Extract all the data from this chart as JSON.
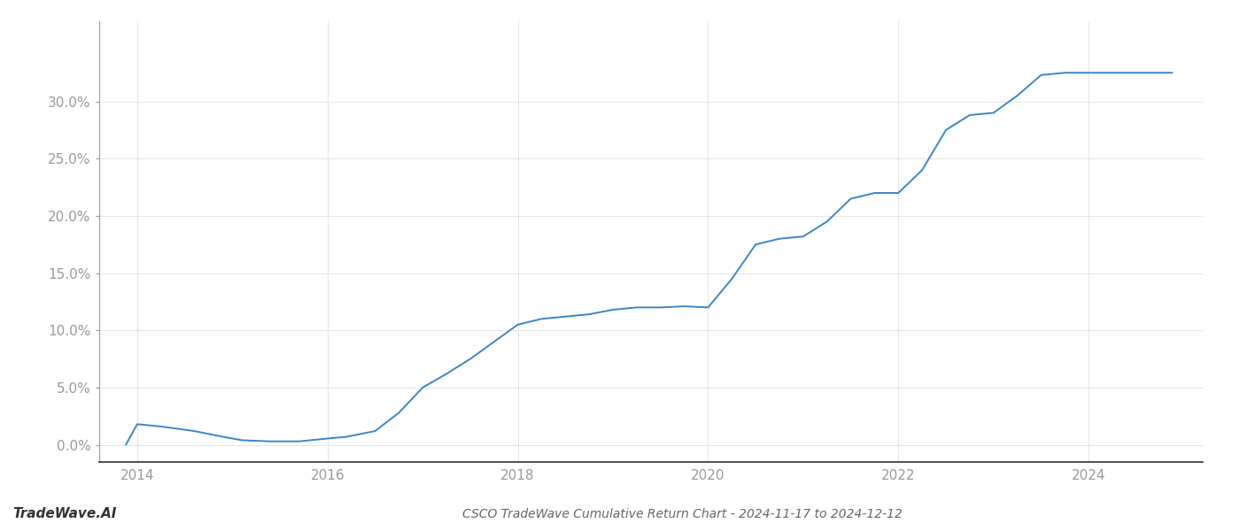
{
  "title": "CSCO TradeWave Cumulative Return Chart - 2024-11-17 to 2024-12-12",
  "watermark": "TradeWave.AI",
  "line_color": "#3a86c8",
  "background_color": "#ffffff",
  "grid_color": "#cccccc",
  "x_values": [
    2013.88,
    2014.0,
    2014.25,
    2014.6,
    2014.9,
    2015.1,
    2015.4,
    2015.7,
    2016.0,
    2016.2,
    2016.5,
    2016.75,
    2017.0,
    2017.25,
    2017.5,
    2017.75,
    2018.0,
    2018.25,
    2018.5,
    2018.75,
    2019.0,
    2019.25,
    2019.5,
    2019.75,
    2020.0,
    2020.25,
    2020.5,
    2020.75,
    2021.0,
    2021.25,
    2021.5,
    2021.75,
    2022.0,
    2022.25,
    2022.5,
    2022.75,
    2023.0,
    2023.25,
    2023.5,
    2023.75,
    2024.0,
    2024.5,
    2024.88
  ],
  "y_values": [
    0.0,
    1.8,
    1.6,
    1.2,
    0.7,
    0.4,
    0.3,
    0.3,
    0.55,
    0.7,
    1.2,
    2.8,
    5.0,
    6.2,
    7.5,
    9.0,
    10.5,
    11.0,
    11.2,
    11.4,
    11.8,
    12.0,
    12.0,
    12.1,
    12.0,
    14.5,
    17.5,
    18.0,
    18.2,
    19.5,
    21.5,
    22.0,
    22.0,
    24.0,
    27.5,
    28.8,
    29.0,
    30.5,
    32.3,
    32.5,
    32.5,
    32.5,
    32.5
  ],
  "xlim": [
    2013.6,
    2025.2
  ],
  "ylim": [
    -1.5,
    37
  ],
  "xticks": [
    2014,
    2016,
    2018,
    2020,
    2022,
    2024
  ],
  "yticks": [
    0,
    5,
    10,
    15,
    20,
    25,
    30
  ],
  "ytick_labels": [
    "0.0%",
    "5.0%",
    "10.0%",
    "15.0%",
    "20.0%",
    "25.0%",
    "30.0%"
  ],
  "line_width": 1.4,
  "title_fontsize": 10,
  "watermark_fontsize": 11,
  "tick_fontsize": 11,
  "grid_alpha": 0.6,
  "title_color": "#666666",
  "watermark_color": "#333333",
  "tick_color": "#999999"
}
